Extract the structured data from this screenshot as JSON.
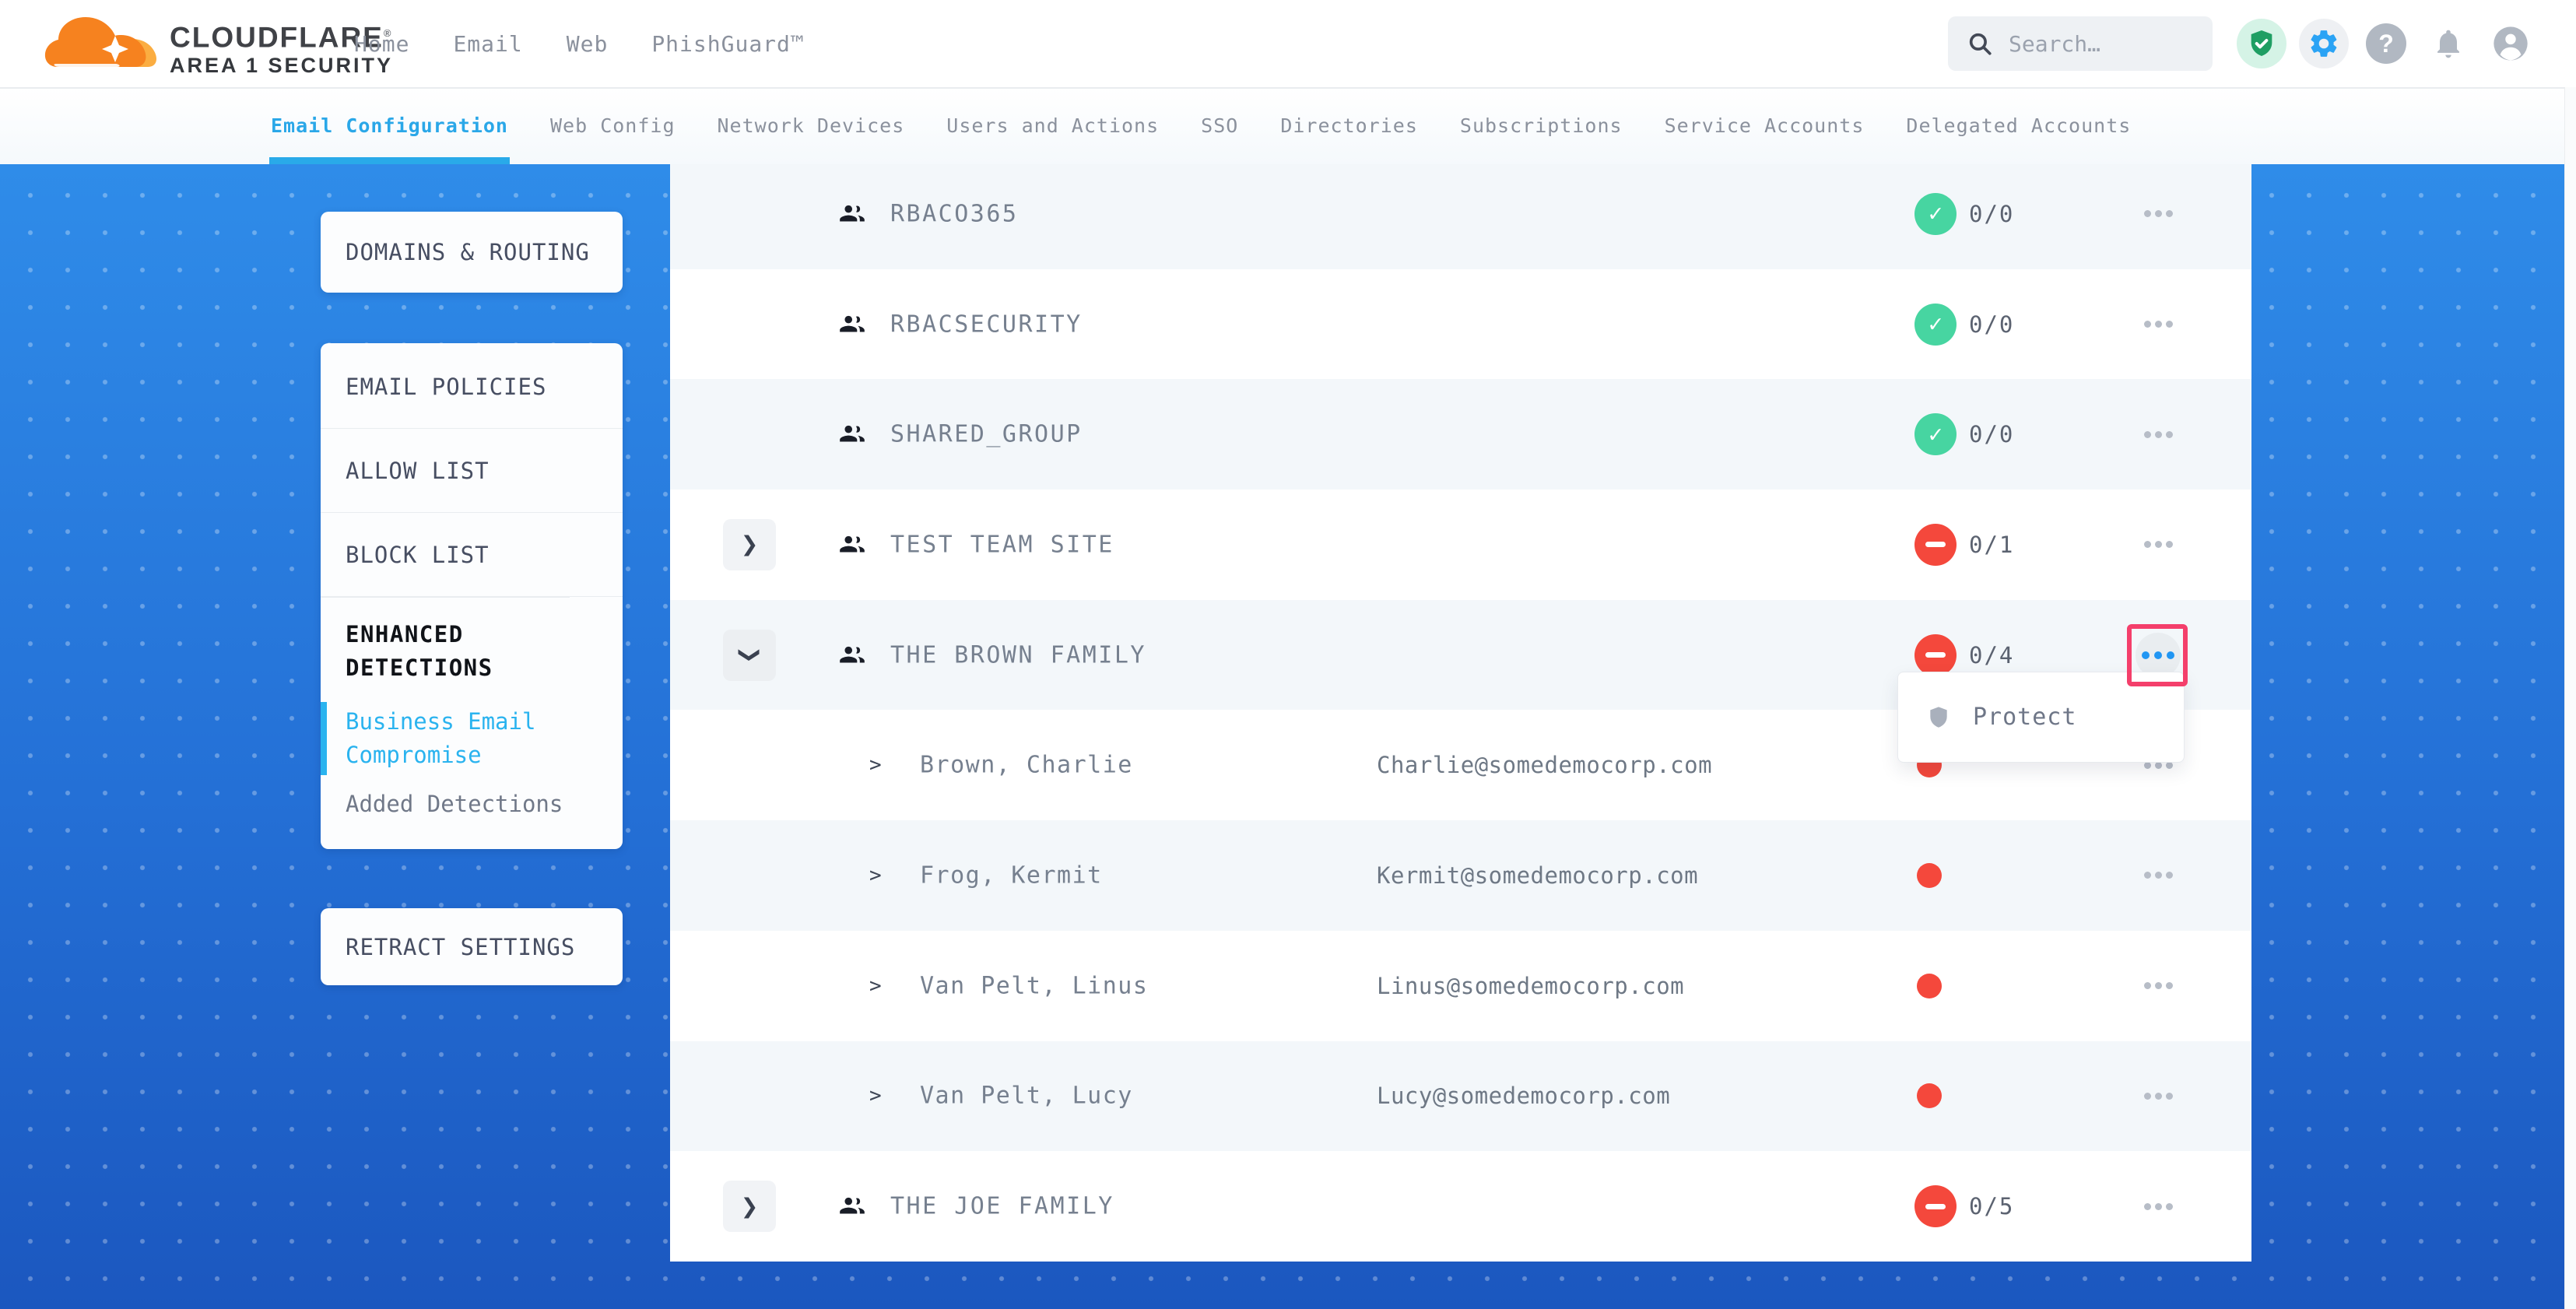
{
  "header": {
    "logo": {
      "brand": "CLOUDFLARE",
      "trademark": "®",
      "product": "AREA 1 SECURITY"
    },
    "nav": [
      {
        "label": "Home"
      },
      {
        "label": "Email"
      },
      {
        "label": "Web"
      },
      {
        "label": "PhishGuard™"
      }
    ],
    "search": {
      "placeholder": "Search…"
    },
    "icons": [
      {
        "name": "shield-check-icon",
        "style": "green-on-mint"
      },
      {
        "name": "settings-gear-icon",
        "style": "blue-on-gray"
      },
      {
        "name": "help-icon",
        "style": "gray"
      },
      {
        "name": "notifications-bell-icon",
        "style": "gray"
      },
      {
        "name": "account-icon",
        "style": "gray"
      }
    ]
  },
  "tabs": [
    {
      "label": "Email Configuration",
      "active": true
    },
    {
      "label": "Web Config",
      "active": false
    },
    {
      "label": "Network Devices",
      "active": false
    },
    {
      "label": "Users and Actions",
      "active": false
    },
    {
      "label": "SSO",
      "active": false
    },
    {
      "label": "Directories",
      "active": false
    },
    {
      "label": "Subscriptions",
      "active": false
    },
    {
      "label": "Service Accounts",
      "active": false
    },
    {
      "label": "Delegated Accounts",
      "active": false
    }
  ],
  "sidebar": {
    "cards": [
      {
        "items": [
          {
            "type": "link",
            "label": "DOMAINS & ROUTING"
          }
        ]
      },
      {
        "items": [
          {
            "type": "link",
            "label": "EMAIL POLICIES"
          },
          {
            "type": "link",
            "label": "ALLOW LIST"
          },
          {
            "type": "link",
            "label": "BLOCK LIST"
          },
          {
            "type": "header",
            "label": "ENHANCED DETECTIONS"
          },
          {
            "type": "sublink",
            "label": "Business Email Compromise",
            "active": true
          },
          {
            "type": "sublink",
            "label": "Added Detections",
            "active": false
          }
        ]
      },
      {
        "items": [
          {
            "type": "link",
            "label": "RETRACT SETTINGS"
          }
        ]
      }
    ]
  },
  "table": {
    "rows": [
      {
        "type": "group",
        "name": "RBACO365",
        "status": "ok",
        "count": "0/0",
        "expandable": false
      },
      {
        "type": "group",
        "name": "RBACSECURITY",
        "status": "ok",
        "count": "0/0",
        "expandable": false
      },
      {
        "type": "group",
        "name": "SHARED_GROUP",
        "status": "ok",
        "count": "0/0",
        "expandable": false
      },
      {
        "type": "group",
        "name": "TEST TEAM SITE",
        "status": "alert",
        "count": "0/1",
        "expandable": true,
        "expanded": false
      },
      {
        "type": "group",
        "name": "THE BROWN FAMILY",
        "status": "alert",
        "count": "0/4",
        "expandable": true,
        "expanded": true,
        "menu_highlighted": true
      },
      {
        "type": "user",
        "name": "Brown, Charlie",
        "email": "Charlie@somedemocorp.com",
        "status": "alert"
      },
      {
        "type": "user",
        "name": "Frog, Kermit",
        "email": "Kermit@somedemocorp.com",
        "status": "alert"
      },
      {
        "type": "user",
        "name": "Van Pelt, Linus",
        "email": "Linus@somedemocorp.com",
        "status": "alert"
      },
      {
        "type": "user",
        "name": "Van Pelt, Lucy",
        "email": "Lucy@somedemocorp.com",
        "status": "alert"
      },
      {
        "type": "group",
        "name": "THE JOE FAMILY",
        "status": "alert",
        "count": "0/5",
        "expandable": true,
        "expanded": false
      }
    ]
  },
  "context_menu": {
    "items": [
      {
        "label": "Protect",
        "icon": "shield-icon"
      }
    ]
  },
  "colors": {
    "accent_cyan": "#29A9EA",
    "brand_orange": "#F6821F",
    "brand_orange_light": "#FBAD41",
    "ok_green": "#47D5A1",
    "alert_red": "#F4483C",
    "highlight_pink": "#F43F6B",
    "menu_dot_blue": "#2196F3",
    "bg_gradient_top": "#2F8CE9",
    "bg_gradient_bottom": "#1B57BF"
  }
}
